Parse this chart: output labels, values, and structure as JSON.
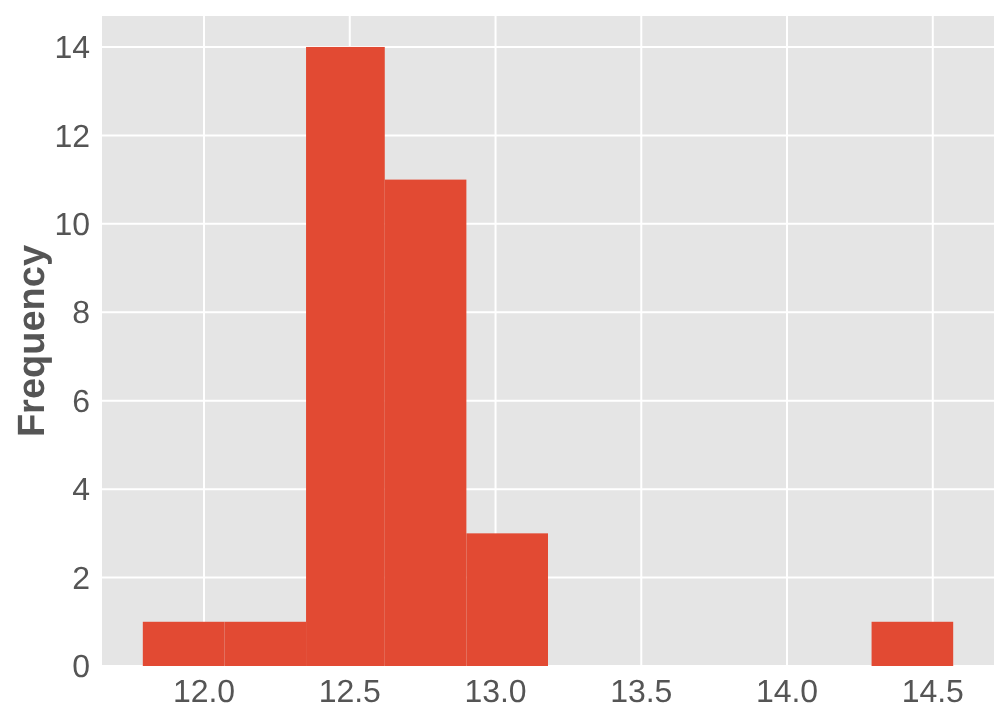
{
  "chart_data": {
    "type": "histogram",
    "ylabel": "Frequency",
    "bins": [
      11.79,
      12.07,
      12.35,
      12.62,
      12.9,
      13.18,
      14.29,
      14.57
    ],
    "values": [
      1,
      1,
      14,
      11,
      3,
      0,
      1
    ],
    "color": "#e24a33",
    "xlim": [
      11.65,
      14.71
    ],
    "xticks": [
      {
        "value": 12,
        "label": "12.0"
      },
      {
        "value": 12.5,
        "label": "12.5"
      },
      {
        "value": 13,
        "label": "13.0"
      },
      {
        "value": 13.5,
        "label": "13.5"
      },
      {
        "value": 14,
        "label": "14.0"
      },
      {
        "value": 14.5,
        "label": "14.5"
      }
    ],
    "ylim": [
      0,
      14.7
    ],
    "yticks": [
      0,
      2,
      4,
      6,
      8,
      10,
      12,
      14
    ],
    "grid": true
  }
}
